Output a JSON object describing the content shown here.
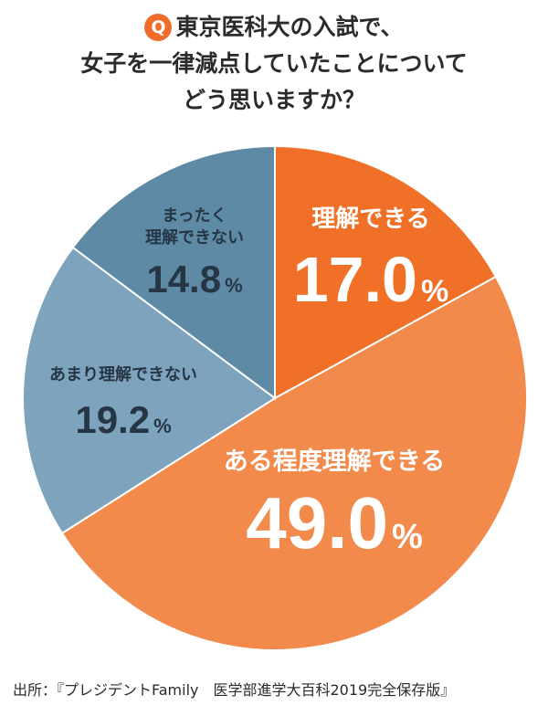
{
  "question": {
    "badge": "Q",
    "lines": [
      "東京医科大の入試で、",
      "女子を一律減点していたことについて",
      "どう思いますか？"
    ]
  },
  "chart_data": {
    "type": "pie",
    "slices": [
      {
        "label": "理解できる",
        "value": 17.0,
        "display": "17.0",
        "color": "#f07028"
      },
      {
        "label": "ある程度理解できる",
        "value": 49.0,
        "display": "49.0",
        "color": "#f28a4c"
      },
      {
        "label": "あまり理解できない",
        "value": 19.2,
        "display": "19.2",
        "color": "#7da4bc"
      },
      {
        "label": "まったく\n理解できない",
        "value": 14.8,
        "display": "14.8",
        "color": "#5e8aa5"
      }
    ],
    "unit": "%"
  },
  "source": "出所：『プレジデントFamily　医学部進学大百科2019完全保存版』"
}
